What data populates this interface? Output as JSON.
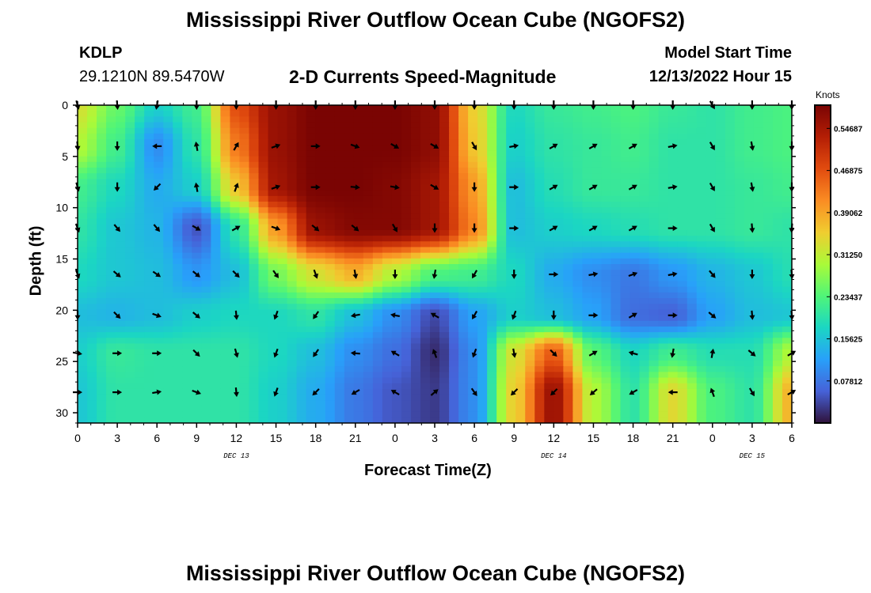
{
  "title": "Mississippi River Outflow Ocean Cube (NGOFS2)",
  "title_repeat": "Mississippi River Outflow Ocean Cube (NGOFS2)",
  "station": {
    "id": "KDLP",
    "coords": "29.1210N  89.5470W"
  },
  "model_start": {
    "label": "Model Start Time",
    "value": "12/13/2022 Hour 15"
  },
  "colorbar": {
    "unit": "Knots",
    "range": [
      0.0,
      0.59
    ],
    "tick_values": [
      0.07812,
      0.15625,
      0.23437,
      0.3125,
      0.39062,
      0.46875,
      0.54687
    ],
    "tick_labels": [
      "0.07812",
      "0.15625",
      "0.23437",
      "0.31250",
      "0.39062",
      "0.46875",
      "0.54687"
    ]
  },
  "chart_data": {
    "type": "heatmap",
    "subtitle": "2-D Currents Speed-Magnitude",
    "xlabel": "Forecast Time(Z)",
    "ylabel": "Depth (ft)",
    "x_hours_range": [
      0,
      54
    ],
    "ylim": [
      0,
      31
    ],
    "x_tick_labels": [
      "0",
      "3",
      "6",
      "9",
      "12",
      "15",
      "18",
      "21",
      "0",
      "3",
      "6",
      "9",
      "12",
      "15",
      "18",
      "21",
      "0",
      "3",
      "6"
    ],
    "y_ticks": [
      0,
      5,
      10,
      15,
      20,
      25,
      30
    ],
    "date_labels": [
      {
        "text": "DEC 13",
        "hour": 12
      },
      {
        "text": "DEC 14",
        "hour": 36
      },
      {
        "text": "DEC 15",
        "hour": 51
      }
    ],
    "hours": [
      0,
      3,
      6,
      9,
      12,
      15,
      18,
      21,
      24,
      27,
      30,
      33,
      36,
      39,
      42,
      45,
      48,
      51,
      54
    ],
    "depths_ft": [
      0,
      4,
      8,
      12,
      16.5,
      20.5,
      24.2,
      28
    ],
    "speed_knots": [
      [
        0.33,
        0.25,
        0.17,
        0.22,
        0.47,
        0.56,
        0.59,
        0.59,
        0.59,
        0.57,
        0.35,
        0.18,
        0.21,
        0.22,
        0.23,
        0.21,
        0.2,
        0.22,
        0.23
      ],
      [
        0.3,
        0.22,
        0.1,
        0.2,
        0.43,
        0.56,
        0.59,
        0.59,
        0.59,
        0.57,
        0.36,
        0.17,
        0.2,
        0.21,
        0.22,
        0.2,
        0.2,
        0.22,
        0.23
      ],
      [
        0.22,
        0.18,
        0.13,
        0.17,
        0.36,
        0.55,
        0.59,
        0.59,
        0.58,
        0.55,
        0.4,
        0.15,
        0.19,
        0.21,
        0.21,
        0.2,
        0.2,
        0.21,
        0.22
      ],
      [
        0.2,
        0.16,
        0.14,
        0.05,
        0.2,
        0.4,
        0.56,
        0.58,
        0.58,
        0.55,
        0.42,
        0.15,
        0.17,
        0.18,
        0.19,
        0.2,
        0.2,
        0.21,
        0.2
      ],
      [
        0.18,
        0.16,
        0.15,
        0.11,
        0.15,
        0.26,
        0.33,
        0.38,
        0.3,
        0.23,
        0.22,
        0.18,
        0.13,
        0.1,
        0.08,
        0.11,
        0.14,
        0.16,
        0.19
      ],
      [
        0.15,
        0.14,
        0.15,
        0.17,
        0.18,
        0.18,
        0.2,
        0.15,
        0.1,
        0.04,
        0.12,
        0.17,
        0.15,
        0.12,
        0.07,
        0.06,
        0.12,
        0.15,
        0.16
      ],
      [
        0.17,
        0.21,
        0.2,
        0.2,
        0.2,
        0.18,
        0.15,
        0.1,
        0.07,
        0.02,
        0.1,
        0.33,
        0.46,
        0.24,
        0.18,
        0.22,
        0.19,
        0.19,
        0.3
      ],
      [
        0.16,
        0.2,
        0.2,
        0.2,
        0.2,
        0.17,
        0.13,
        0.08,
        0.05,
        0.03,
        0.1,
        0.35,
        0.56,
        0.3,
        0.2,
        0.34,
        0.23,
        0.2,
        0.38
      ]
    ],
    "direction_deg_clockwise_from_north": [
      [
        165,
        175,
        190,
        180,
        180,
        180,
        180,
        180,
        180,
        180,
        180,
        180,
        180,
        180,
        180,
        180,
        150,
        180,
        180
      ],
      [
        175,
        180,
        270,
        350,
        30,
        70,
        90,
        110,
        120,
        120,
        150,
        80,
        60,
        60,
        60,
        80,
        150,
        170,
        180
      ],
      [
        165,
        180,
        225,
        350,
        20,
        70,
        90,
        95,
        100,
        120,
        180,
        90,
        60,
        60,
        60,
        80,
        150,
        170,
        180
      ],
      [
        160,
        140,
        140,
        120,
        60,
        110,
        130,
        130,
        150,
        180,
        180,
        90,
        60,
        60,
        60,
        90,
        150,
        175,
        185
      ],
      [
        160,
        130,
        125,
        130,
        135,
        145,
        160,
        170,
        180,
        190,
        210,
        180,
        90,
        80,
        70,
        80,
        140,
        180,
        175
      ],
      [
        180,
        135,
        110,
        130,
        175,
        200,
        215,
        260,
        280,
        300,
        210,
        200,
        180,
        90,
        60,
        90,
        130,
        175,
        175
      ],
      [
        100,
        90,
        90,
        135,
        165,
        200,
        215,
        275,
        300,
        340,
        200,
        170,
        135,
        60,
        285,
        190,
        10,
        130,
        60
      ],
      [
        90,
        90,
        80,
        110,
        175,
        200,
        225,
        240,
        300,
        50,
        145,
        225,
        225,
        230,
        240,
        270,
        340,
        150,
        60
      ]
    ]
  }
}
